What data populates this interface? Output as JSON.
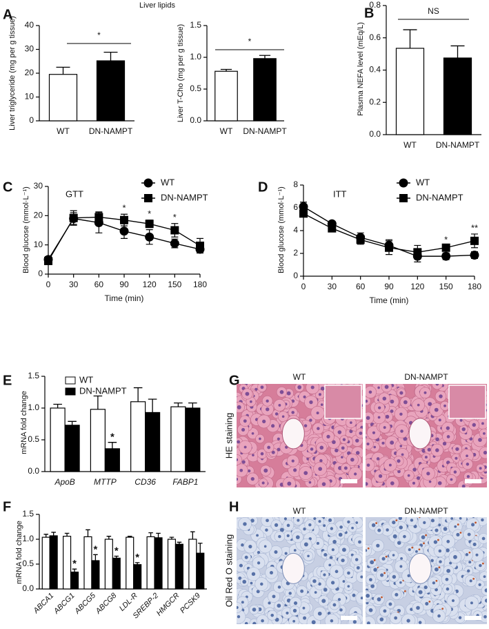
{
  "panel_labels": [
    "A",
    "B",
    "C",
    "D",
    "E",
    "F",
    "G",
    "H"
  ],
  "chart_data": [
    {
      "type": "bar",
      "title": "Liver lipids",
      "y_label": "Liver triglyceride (mg per g tissue)",
      "categories": [
        "WT",
        "DN-NAMPT"
      ],
      "values": [
        19.5,
        25.2
      ],
      "errors": [
        3.0,
        3.6
      ],
      "colors": [
        "#ffffff",
        "#000000"
      ],
      "ylim": [
        0,
        40
      ],
      "yticks": [
        0,
        10,
        20,
        30,
        40
      ],
      "annotations": [
        "*"
      ]
    },
    {
      "type": "bar",
      "y_label": "Liver T-Cho (mg per g tissue)",
      "categories": [
        "WT",
        "DN-NAMPT"
      ],
      "values": [
        0.78,
        0.98
      ],
      "errors": [
        0.03,
        0.05
      ],
      "colors": [
        "#ffffff",
        "#000000"
      ],
      "ylim": [
        0,
        1.5
      ],
      "yticks": [
        {
          "value": 0,
          "label": "0.0"
        },
        0.5,
        {
          "value": 1,
          "label": "1.0"
        },
        1.5
      ],
      "annotations": [
        "*"
      ]
    },
    {
      "type": "bar",
      "y_label": "Plasma NEFA level (mEq/L)",
      "categories": [
        "WT",
        "DN-NAMPT"
      ],
      "values": [
        0.535,
        0.475
      ],
      "errors": [
        0.115,
        0.075
      ],
      "colors": [
        "#ffffff",
        "#000000"
      ],
      "ylim": [
        0,
        0.8
      ],
      "yticks": [
        {
          "value": 0,
          "label": "0.0"
        },
        0.2,
        0.4,
        0.6,
        0.8
      ],
      "annotations": [
        "NS"
      ]
    },
    {
      "type": "line",
      "x_label": "Time (min)",
      "y_label": "Blood glucose (mmol·L⁻¹)",
      "x": [
        0,
        30,
        60,
        90,
        120,
        150,
        180
      ],
      "xlim": [
        0,
        180
      ],
      "xticks": [
        0,
        30,
        60,
        90,
        120,
        150,
        180
      ],
      "ylim": [
        0,
        30
      ],
      "yticks": [
        0,
        10,
        20,
        30
      ],
      "series": [
        {
          "name": "WT",
          "color": "#000000",
          "marker": "circle",
          "values": [
            5.0,
            19.0,
            17.6,
            14.7,
            12.7,
            10.5,
            8.5
          ],
          "errors": [
            1.0,
            2.0,
            3.5,
            2.5,
            2.5,
            1.5,
            1.2
          ]
        },
        {
          "name": "DN-NAMPT",
          "color": "#000000",
          "marker": "square",
          "values": [
            4.5,
            19.2,
            19.5,
            18.5,
            17.2,
            15.0,
            9.7
          ],
          "errors": [
            0.8,
            2.5,
            1.8,
            2.0,
            1.3,
            2.3,
            2.5
          ]
        }
      ],
      "annotations": [
        "GTT",
        "*",
        "*",
        "*"
      ]
    },
    {
      "type": "line",
      "x_label": "Time (min)",
      "y_label": "Blood glucose (mmol·L⁻¹)",
      "x": [
        0,
        30,
        60,
        90,
        120,
        150,
        180
      ],
      "xlim": [
        0,
        180
      ],
      "xticks": [
        0,
        30,
        60,
        90,
        120,
        150,
        180
      ],
      "ylim": [
        0,
        8
      ],
      "yticks": [
        0,
        2,
        4,
        6,
        8
      ],
      "series": [
        {
          "name": "WT",
          "color": "#000000",
          "marker": "circle",
          "values": [
            6.1,
            4.6,
            3.4,
            2.7,
            1.75,
            1.75,
            1.85
          ],
          "errors": [
            0.4,
            0.2,
            0.4,
            0.5,
            0.5,
            0.3,
            0.3
          ]
        },
        {
          "name": "DN-NAMPT",
          "color": "#000000",
          "marker": "square",
          "values": [
            5.5,
            4.2,
            3.2,
            2.5,
            2.1,
            2.5,
            3.1
          ],
          "errors": [
            0.3,
            0.3,
            0.4,
            0.6,
            0.6,
            0.15,
            0.6
          ]
        }
      ],
      "annotations": [
        "ITT",
        "*",
        "**"
      ]
    },
    {
      "type": "bar",
      "y_label": "mRNA fold change",
      "category_style": "italic",
      "categories": [
        "ApoB",
        "MTTP",
        "CD36",
        "FABP1"
      ],
      "series": [
        {
          "name": "WT",
          "color": "#ffffff",
          "values": [
            1.0,
            0.98,
            1.1,
            1.02
          ],
          "errors": [
            0.06,
            0.21,
            0.22,
            0.06
          ]
        },
        {
          "name": "DN-NAMPT",
          "color": "#000000",
          "values": [
            0.73,
            0.36,
            0.93,
            1.0
          ],
          "errors": [
            0.06,
            0.1,
            0.21,
            0.08
          ]
        }
      ],
      "ylim": [
        0,
        1.5
      ],
      "yticks": [
        {
          "value": 0,
          "label": "0.0"
        },
        0.5,
        {
          "value": 1,
          "label": "1.0"
        },
        1.5
      ],
      "annotations": [
        "*"
      ]
    },
    {
      "type": "bar",
      "y_label": "mRNA fold change",
      "category_style": "italic",
      "categories": [
        "ABCA1",
        "ABCG1",
        "ABCG5",
        "ABCG8",
        "LDL-R",
        "SREBP-2",
        "HMGCR",
        "PCSK9"
      ],
      "series": [
        {
          "name": "WT",
          "color": "#ffffff",
          "values": [
            1.04,
            1.06,
            1.05,
            1.0,
            1.04,
            1.05,
            1.0,
            1.0
          ],
          "errors": [
            0.06,
            0.06,
            0.14,
            0.06,
            0.02,
            0.08,
            0.04,
            0.15
          ]
        },
        {
          "name": "DN-NAMPT",
          "color": "#000000",
          "values": [
            1.07,
            0.34,
            0.57,
            0.62,
            0.49,
            1.03,
            0.9,
            0.72
          ],
          "errors": [
            0.07,
            0.06,
            0.12,
            0.04,
            0.04,
            0.09,
            0.04,
            0.2
          ]
        }
      ],
      "ylim": [
        0,
        1.5
      ],
      "yticks": [
        {
          "value": 0,
          "label": "0.0"
        },
        0.5,
        {
          "value": 1,
          "label": "1.0"
        },
        1.5
      ],
      "annotations": [
        "*",
        "*",
        "*",
        "*"
      ]
    }
  ],
  "histology": [
    {
      "columns": [
        "WT",
        "DN-NAMPT"
      ],
      "row_label": "HE staining"
    },
    {
      "columns": [
        "WT",
        "DN-NAMPT"
      ],
      "row_label": "Oil Red O staining"
    }
  ]
}
